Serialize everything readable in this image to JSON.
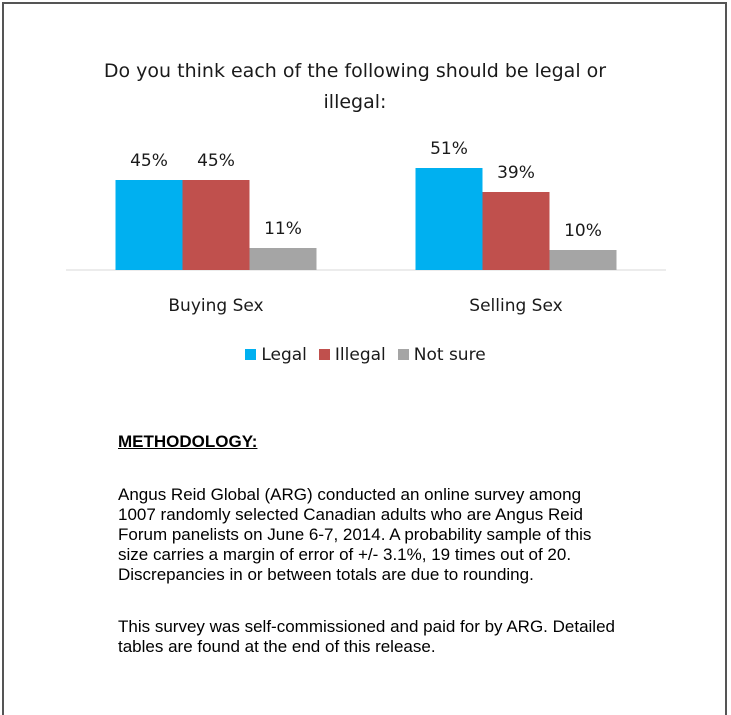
{
  "chart_data": {
    "type": "bar",
    "title": "Do you think each of the following should be legal or illegal:",
    "categories": [
      "Buying Sex",
      "Selling Sex"
    ],
    "series": [
      {
        "name": "Legal",
        "values": [
          45,
          51
        ],
        "labels": [
          "45%",
          "51%"
        ],
        "color": "#00b0f0"
      },
      {
        "name": "Illegal",
        "values": [
          45,
          39
        ],
        "labels": [
          "45%",
          "39%"
        ],
        "color": "#c0504d"
      },
      {
        "name": "Not sure",
        "values": [
          11,
          10
        ],
        "labels": [
          "11%",
          "10%"
        ],
        "color": "#a5a5a5"
      }
    ],
    "xlabel": "",
    "ylabel": "",
    "ylim": [
      0,
      60
    ],
    "grid": false,
    "legend_position": "bottom"
  },
  "methodology": {
    "heading": "METHODOLOGY:",
    "paragraph1": "Angus Reid Global (ARG) conducted an online survey among 1007 randomly selected Canadian adults who are Angus Reid Forum panelists on June 6-7, 2014. A probability sample of this size carries a margin of error of +/- 3.1%, 19 times out of 20. Discrepancies in or between totals are due to rounding.",
    "paragraph2": "This survey was self-commissioned and paid for by ARG. Detailed tables are found at the end of this release."
  }
}
